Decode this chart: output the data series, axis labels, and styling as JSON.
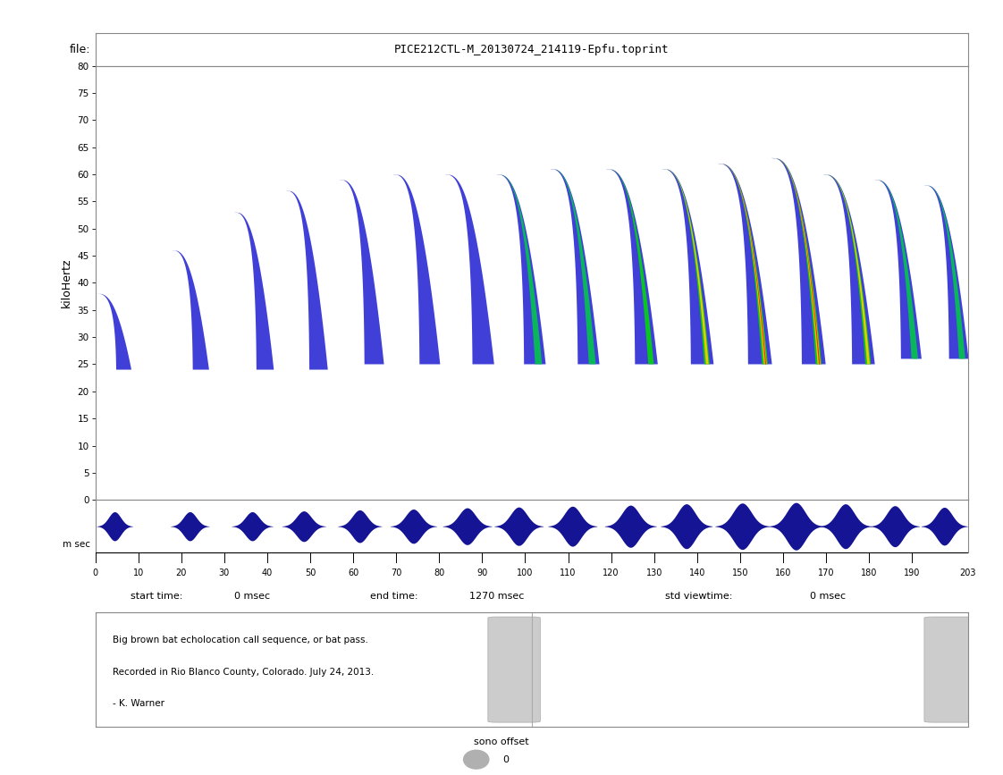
{
  "title_text": "PICE212CTL-M_20130724_214119-Epfu.toprint",
  "file_label": "file:",
  "ylabel_spectrogram": "kiloHertz",
  "ylim_spec": [
    0,
    80
  ],
  "xlim_spec": [
    0,
    203
  ],
  "yticks_spec": [
    0,
    5,
    10,
    15,
    20,
    25,
    30,
    35,
    40,
    45,
    50,
    55,
    60,
    65,
    70,
    75,
    80
  ],
  "xticks_waveform": [
    0,
    10,
    20,
    30,
    40,
    50,
    60,
    70,
    80,
    90,
    100,
    110,
    120,
    130,
    140,
    150,
    160,
    170,
    180,
    190,
    203
  ],
  "start_time_label": "start time:",
  "start_time_val": "0 msec",
  "end_time_label": "end time:",
  "end_time_val": "1270 msec",
  "std_viewtime_label": "std viewtime:",
  "std_viewtime_val": "0 msec",
  "annotation_line1": "Big brown bat echolocation call sequence, or bat pass.",
  "annotation_line2": "Recorded in Rio Blanco County, Colorado. July 24, 2013.",
  "annotation_line3": "- K. Warner",
  "sono_offset_label": "sono offset",
  "sono_offset_val": "0",
  "background_color": "#ffffff",
  "calls": [
    {
      "t_start": 0.5,
      "f_high": 38,
      "f_low": 24,
      "t_span": 7.0,
      "intensity": 0.25
    },
    {
      "t_start": 18.0,
      "f_high": 46,
      "f_low": 24,
      "t_span": 7.5,
      "intensity": 0.25
    },
    {
      "t_start": 32.5,
      "f_high": 53,
      "f_low": 24,
      "t_span": 8.0,
      "intensity": 0.25
    },
    {
      "t_start": 44.5,
      "f_high": 57,
      "f_low": 24,
      "t_span": 8.5,
      "intensity": 0.25
    },
    {
      "t_start": 57.0,
      "f_high": 59,
      "f_low": 25,
      "t_span": 9.0,
      "intensity": 0.3
    },
    {
      "t_start": 69.5,
      "f_high": 60,
      "f_low": 25,
      "t_span": 9.5,
      "intensity": 0.4
    },
    {
      "t_start": 81.5,
      "f_high": 60,
      "f_low": 25,
      "t_span": 10.0,
      "intensity": 0.5
    },
    {
      "t_start": 93.5,
      "f_high": 60,
      "f_low": 25,
      "t_span": 10.0,
      "intensity": 0.65
    },
    {
      "t_start": 106.0,
      "f_high": 61,
      "f_low": 25,
      "t_span": 10.0,
      "intensity": 0.75
    },
    {
      "t_start": 119.0,
      "f_high": 61,
      "f_low": 25,
      "t_span": 10.5,
      "intensity": 0.88
    },
    {
      "t_start": 132.0,
      "f_high": 61,
      "f_low": 25,
      "t_span": 10.5,
      "intensity": 0.95
    },
    {
      "t_start": 145.0,
      "f_high": 62,
      "f_low": 25,
      "t_span": 11.0,
      "intensity": 1.0
    },
    {
      "t_start": 157.5,
      "f_high": 63,
      "f_low": 25,
      "t_span": 11.0,
      "intensity": 1.0
    },
    {
      "t_start": 169.5,
      "f_high": 60,
      "f_low": 25,
      "t_span": 10.5,
      "intensity": 0.9
    },
    {
      "t_start": 181.5,
      "f_high": 59,
      "f_low": 26,
      "t_span": 9.5,
      "intensity": 0.75
    },
    {
      "t_start": 193.0,
      "f_high": 58,
      "f_low": 26,
      "t_span": 9.0,
      "intensity": 0.6
    }
  ],
  "waveform_calls": [
    {
      "tc": 4.5,
      "tw": 7.0,
      "amp": 0.55
    },
    {
      "tc": 22.0,
      "tw": 7.5,
      "amp": 0.55
    },
    {
      "tc": 36.5,
      "tw": 8.0,
      "amp": 0.55
    },
    {
      "tc": 48.5,
      "tw": 8.5,
      "amp": 0.58
    },
    {
      "tc": 61.5,
      "tw": 8.5,
      "amp": 0.62
    },
    {
      "tc": 74.0,
      "tw": 9.0,
      "amp": 0.65
    },
    {
      "tc": 86.5,
      "tw": 9.5,
      "amp": 0.7
    },
    {
      "tc": 98.5,
      "tw": 9.5,
      "amp": 0.73
    },
    {
      "tc": 111.0,
      "tw": 9.5,
      "amp": 0.76
    },
    {
      "tc": 124.5,
      "tw": 10.0,
      "amp": 0.8
    },
    {
      "tc": 137.5,
      "tw": 10.0,
      "amp": 0.85
    },
    {
      "tc": 150.5,
      "tw": 10.5,
      "amp": 0.88
    },
    {
      "tc": 163.0,
      "tw": 10.5,
      "amp": 0.9
    },
    {
      "tc": 174.5,
      "tw": 10.0,
      "amp": 0.85
    },
    {
      "tc": 186.0,
      "tw": 9.5,
      "amp": 0.78
    },
    {
      "tc": 197.5,
      "tw": 9.0,
      "amp": 0.72
    }
  ]
}
